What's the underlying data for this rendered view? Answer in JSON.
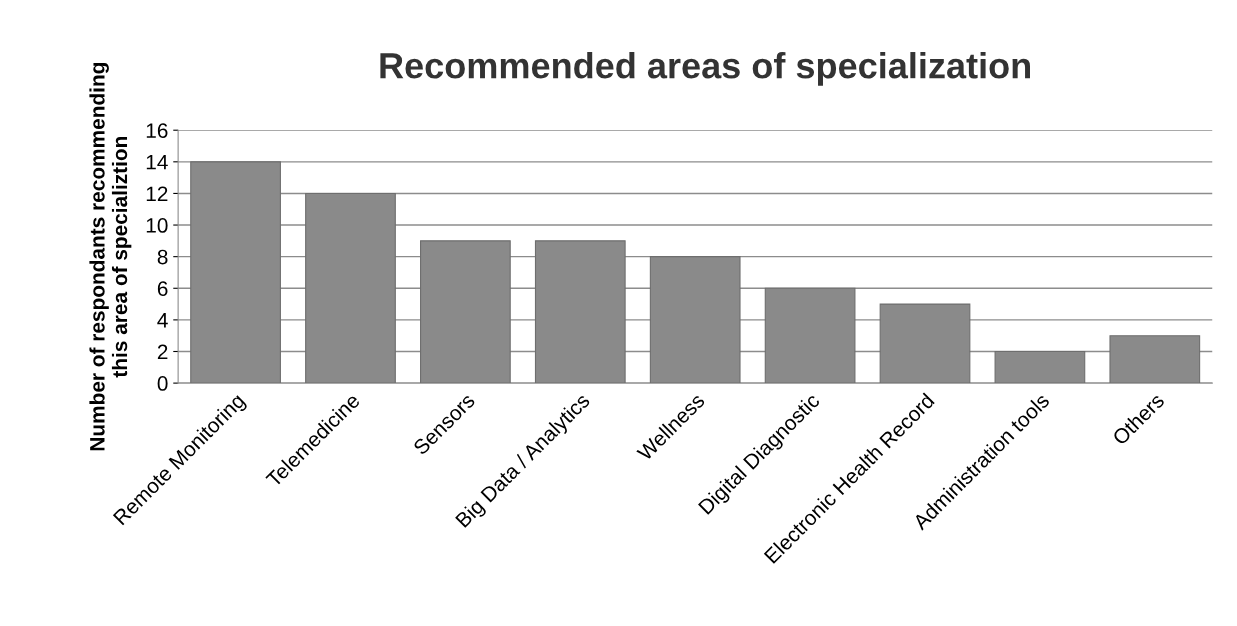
{
  "chart_data": {
    "type": "bar",
    "title": "Recommended areas of specialization",
    "ylabel": "Number of respondants recommending\nthis area of specializtion",
    "categories": [
      "Remote Monitoring",
      "Telemedicine",
      "Sensors",
      "Big Data / Analytics",
      "Wellness",
      "Digital Diagnostic",
      "Electronic Health Record",
      "Administration tools",
      "Others"
    ],
    "values": [
      14,
      12,
      9,
      9,
      8,
      6,
      5,
      2,
      3
    ],
    "color": "#8a8a8a",
    "ylim": [
      0,
      16
    ],
    "yticks": [
      0,
      2,
      4,
      6,
      8,
      10,
      12,
      14,
      16
    ],
    "grid": "y"
  }
}
